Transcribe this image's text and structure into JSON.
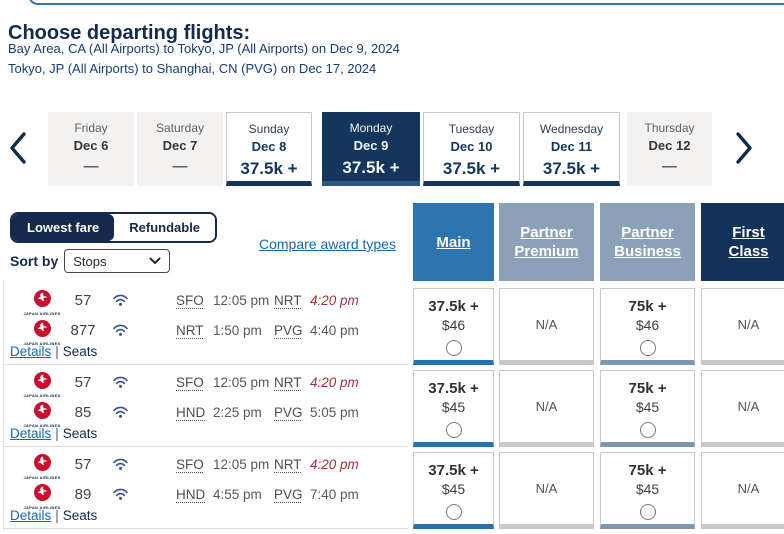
{
  "page": {
    "title": "Choose departing flights:",
    "itinerary_line1": "Bay Area, CA (All Airports) to Tokyo, JP (All Airports) on Dec 9, 2024",
    "itinerary_line2": "Tokyo, JP (All Airports) to Shanghai, CN (PVG) on Dec 17, 2024"
  },
  "colors": {
    "navy": "#14355c",
    "main_blue": "#2e75ad",
    "partner_blue_gray": "#8ba1b7",
    "link_blue": "#1668b3",
    "highlight_maroon": "#9e3339",
    "jal_red": "#c8102e",
    "na_strip_gray": "#c9c9c9",
    "business_strip": "#7e96ae"
  },
  "date_strip": {
    "prev_icon": "chevron-left-icon",
    "next_icon": "chevron-right-icon",
    "days": [
      {
        "day": "Friday",
        "date": "Dec 6",
        "fare": "—",
        "state": "unavailable"
      },
      {
        "day": "Saturday",
        "date": "Dec 7",
        "fare": "—",
        "state": "unavailable"
      },
      {
        "day": "Sunday",
        "date": "Dec 8",
        "fare": "37.5k +",
        "state": "available"
      },
      {
        "day": "Monday",
        "date": "Dec 9",
        "fare": "37.5k +",
        "state": "selected"
      },
      {
        "day": "Tuesday",
        "date": "Dec 10",
        "fare": "37.5k +",
        "state": "available"
      },
      {
        "day": "Wednesday",
        "date": "Dec 11",
        "fare": "37.5k +",
        "state": "available"
      },
      {
        "day": "Thursday",
        "date": "Dec 12",
        "fare": "—",
        "state": "unavailable"
      }
    ]
  },
  "filters": {
    "fare_toggle": [
      {
        "label": "Lowest fare",
        "selected": true
      },
      {
        "label": "Refundable",
        "selected": false
      }
    ],
    "sort_label": "Sort by",
    "sort_value": "Stops",
    "compare_link": "Compare award types"
  },
  "award_columns": [
    {
      "id": "main",
      "lines": [
        "Main"
      ],
      "bg": "#2e75ad"
    },
    {
      "id": "partner-premium",
      "lines": [
        "Partner",
        "Premium"
      ],
      "bg": "#8ba1b7"
    },
    {
      "id": "partner-business",
      "lines": [
        "Partner",
        "Business"
      ],
      "bg": "#8ba1b7"
    },
    {
      "id": "first-class",
      "lines": [
        "First",
        "Class"
      ],
      "bg": "#123357"
    }
  ],
  "flight_rows": [
    {
      "segments": [
        {
          "airline": "Japan Airlines",
          "flight": "57",
          "wifi": true,
          "dep_code": "SFO",
          "dep_time": "12:05 pm",
          "arr_code": "NRT",
          "arr_time": "4:20 pm",
          "arr_highlight": true
        },
        {
          "airline": "Japan Airlines",
          "flight": "877",
          "wifi": true,
          "dep_code": "NRT",
          "dep_time": "1:50 pm",
          "arr_code": "PVG",
          "arr_time": "4:40 pm",
          "arr_highlight": false
        }
      ],
      "details_label": "Details",
      "separator": "|",
      "seats_label": "Seats",
      "fares": [
        {
          "column": "main",
          "award": "37.5k +",
          "cash": "$46",
          "radio": true,
          "accent": "#2672ae"
        },
        {
          "column": "partner-premium",
          "na": "N/A",
          "accent": "#c9c9c9"
        },
        {
          "column": "partner-business",
          "award": "75k +",
          "cash": "$46",
          "radio": true,
          "accent": "#7e96ae"
        },
        {
          "column": "first-class",
          "na": "N/A",
          "accent": "#c9c9c9"
        }
      ]
    },
    {
      "segments": [
        {
          "airline": "Japan Airlines",
          "flight": "57",
          "wifi": true,
          "dep_code": "SFO",
          "dep_time": "12:05 pm",
          "arr_code": "NRT",
          "arr_time": "4:20 pm",
          "arr_highlight": true
        },
        {
          "airline": "Japan Airlines",
          "flight": "85",
          "wifi": true,
          "dep_code": "HND",
          "dep_time": "2:25 pm",
          "arr_code": "PVG",
          "arr_time": "5:05 pm",
          "arr_highlight": false
        }
      ],
      "details_label": "Details",
      "separator": "|",
      "seats_label": "Seats",
      "fares": [
        {
          "column": "main",
          "award": "37.5k +",
          "cash": "$45",
          "radio": true,
          "accent": "#2672ae"
        },
        {
          "column": "partner-premium",
          "na": "N/A",
          "accent": "#c9c9c9"
        },
        {
          "column": "partner-business",
          "award": "75k +",
          "cash": "$45",
          "radio": true,
          "accent": "#7e96ae"
        },
        {
          "column": "first-class",
          "na": "N/A",
          "accent": "#c9c9c9"
        }
      ]
    },
    {
      "segments": [
        {
          "airline": "Japan Airlines",
          "flight": "57",
          "wifi": true,
          "dep_code": "SFO",
          "dep_time": "12:05 pm",
          "arr_code": "NRT",
          "arr_time": "4:20 pm",
          "arr_highlight": true
        },
        {
          "airline": "Japan Airlines",
          "flight": "89",
          "wifi": true,
          "dep_code": "HND",
          "dep_time": "4:55 pm",
          "arr_code": "PVG",
          "arr_time": "7:40 pm",
          "arr_highlight": false
        }
      ],
      "details_label": "Details",
      "separator": "|",
      "seats_label": "Seats",
      "fares": [
        {
          "column": "main",
          "award": "37.5k +",
          "cash": "$45",
          "radio": true,
          "accent": "#2672ae"
        },
        {
          "column": "partner-premium",
          "na": "N/A",
          "accent": "#c9c9c9"
        },
        {
          "column": "partner-business",
          "award": "75k +",
          "cash": "$45",
          "radio": true,
          "accent": "#7e96ae"
        },
        {
          "column": "first-class",
          "na": "N/A",
          "accent": "#c9c9c9"
        }
      ]
    }
  ]
}
